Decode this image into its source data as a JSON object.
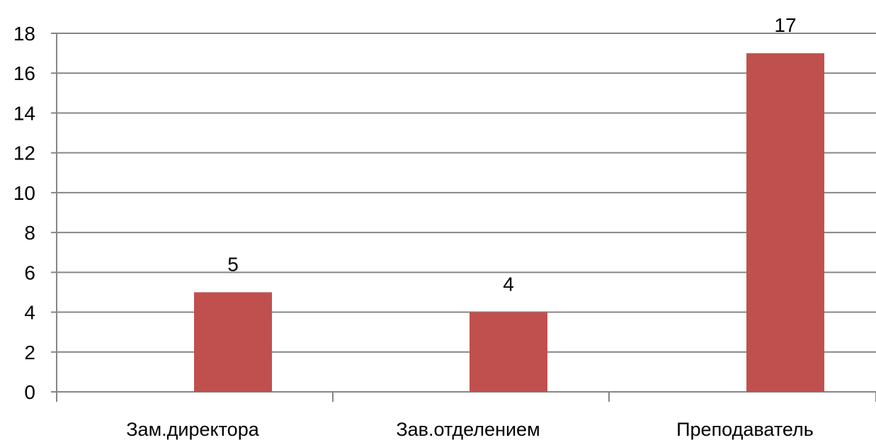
{
  "chart_data": {
    "type": "bar",
    "categories": [
      "Зам.директора",
      "Зав.отделением",
      "Преподаватель"
    ],
    "values": [
      5,
      4,
      17
    ],
    "data_labels": [
      "5",
      "4",
      "17"
    ],
    "title": "",
    "xlabel": "",
    "ylabel": "",
    "ylim": [
      0,
      18
    ],
    "yticks": [
      0,
      2,
      4,
      6,
      8,
      10,
      12,
      14,
      16,
      18
    ],
    "ytick_labels": [
      "0",
      "2",
      "4",
      "6",
      "8",
      "10",
      "12",
      "14",
      "16",
      "18"
    ],
    "grid": true,
    "legend": false,
    "bar_color": "#c0504d",
    "grid_color": "#868686"
  }
}
